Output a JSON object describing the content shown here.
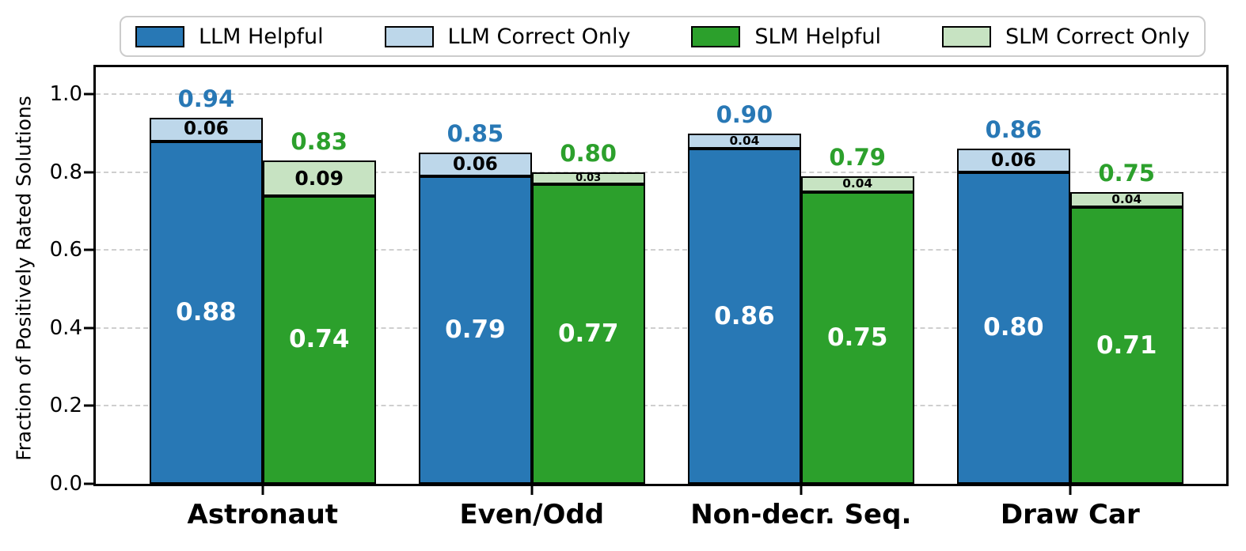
{
  "legend": {
    "items": [
      {
        "label": "LLM Helpful",
        "color": "#2878b5"
      },
      {
        "label": "LLM Correct Only",
        "color": "#bdd7ea"
      },
      {
        "label": "SLM Helpful",
        "color": "#2ca02c"
      },
      {
        "label": "SLM Correct Only",
        "color": "#c7e3c2"
      }
    ]
  },
  "chart_data": {
    "type": "bar",
    "stacked": true,
    "title": "",
    "xlabel": "",
    "ylabel": "Fraction of Positively Rated Solutions",
    "categories": [
      "Astronaut",
      "Even/Odd",
      "Non-decr. Seq.",
      "Draw Car"
    ],
    "series": [
      {
        "name": "LLM Helpful",
        "color": "#2878b5",
        "values": [
          0.88,
          0.79,
          0.86,
          0.8
        ]
      },
      {
        "name": "LLM Correct Only",
        "color": "#bdd7ea",
        "values": [
          0.06,
          0.06,
          0.04,
          0.06
        ]
      },
      {
        "name": "SLM Helpful",
        "color": "#2ca02c",
        "values": [
          0.74,
          0.77,
          0.75,
          0.71
        ]
      },
      {
        "name": "SLM Correct Only",
        "color": "#c7e3c2",
        "values": [
          0.09,
          0.03,
          0.04,
          0.04
        ]
      }
    ],
    "totals": [
      {
        "name": "LLM total",
        "color": "#2878b5",
        "values": [
          0.94,
          0.85,
          0.9,
          0.86
        ]
      },
      {
        "name": "SLM total",
        "color": "#2ca02c",
        "values": [
          0.83,
          0.8,
          0.79,
          0.75
        ]
      }
    ],
    "yticks": [
      0.0,
      0.2,
      0.4,
      0.6,
      0.8,
      1.0
    ],
    "ylim": [
      0,
      1.07
    ],
    "grid": "horizontal-dashed",
    "grid_color": "#cfcfcf",
    "legend_position": "top"
  }
}
